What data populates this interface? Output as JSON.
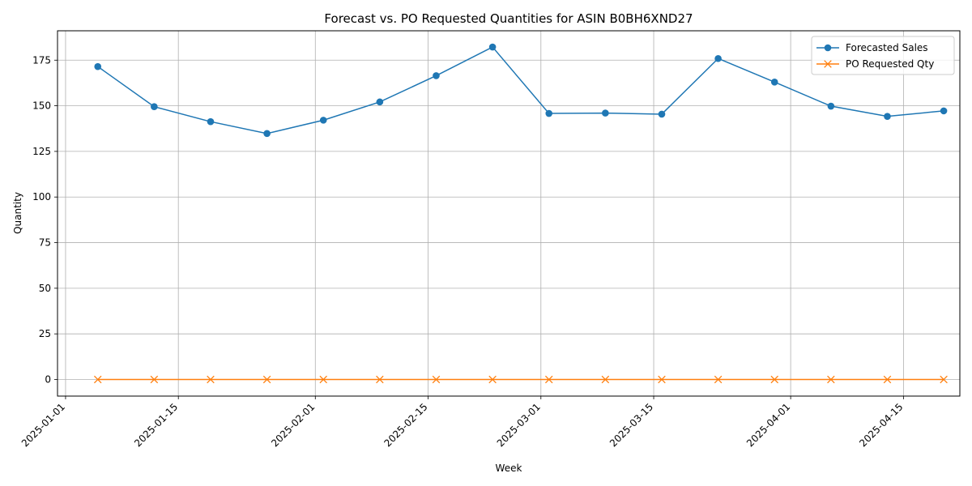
{
  "chart_data": {
    "type": "line",
    "title": "Forecast vs. PO Requested Quantities for ASIN B0BH6XND27",
    "xlabel": "Week",
    "ylabel": "Quantity",
    "x": [
      "2025-01-05",
      "2025-01-12",
      "2025-01-19",
      "2025-01-26",
      "2025-02-02",
      "2025-02-09",
      "2025-02-16",
      "2025-02-23",
      "2025-03-02",
      "2025-03-09",
      "2025-03-16",
      "2025-03-23",
      "2025-03-30",
      "2025-04-06",
      "2025-04-13",
      "2025-04-20"
    ],
    "x_ticks": [
      "2025-01-01",
      "2025-01-15",
      "2025-02-01",
      "2025-02-15",
      "2025-03-01",
      "2025-03-15",
      "2025-04-01",
      "2025-04-15"
    ],
    "xlim": [
      "2024-12-31",
      "2025-04-22"
    ],
    "y_ticks": [
      0,
      25,
      50,
      75,
      100,
      125,
      150,
      175
    ],
    "ylim": [
      -9.1,
      191.1
    ],
    "grid": true,
    "legend_position": "top-right",
    "series": [
      {
        "name": "Forecasted Sales",
        "color": "#1f77b4",
        "marker": "circle",
        "values": [
          171.5,
          149.5,
          141.3,
          134.8,
          142.1,
          152.1,
          166.5,
          182.2,
          145.8,
          146.0,
          145.4,
          175.9,
          163.0,
          149.8,
          144.2,
          147.2
        ]
      },
      {
        "name": "PO Requested Qty",
        "color": "#ff7f0e",
        "marker": "x",
        "values": [
          0,
          0,
          0,
          0,
          0,
          0,
          0,
          0,
          0,
          0,
          0,
          0,
          0,
          0,
          0,
          0
        ]
      }
    ]
  }
}
